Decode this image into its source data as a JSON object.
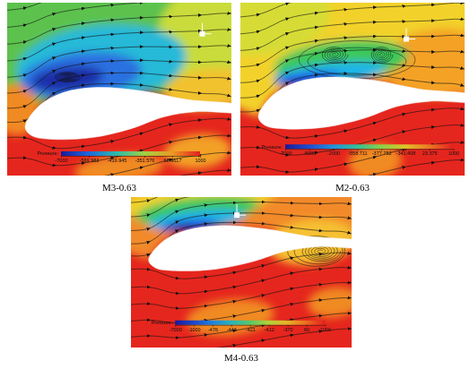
{
  "chart_data": [
    {
      "type": "contour",
      "title": "M3-0.63",
      "colorbar": {
        "label": "Pressure:",
        "range": [
          -7000,
          1000
        ],
        "ticks": [
          -7000,
          -569.983,
          -419.945,
          -351.576,
          68.9617,
          1000
        ]
      }
    },
    {
      "type": "contour",
      "title": "M2-0.63",
      "colorbar": {
        "label": "Pressure:",
        "range": [
          -7000,
          1000
        ],
        "ticks": [
          -7000,
          -5000,
          -2000,
          -558.711,
          -377.752,
          -341.408,
          23.375,
          1000
        ]
      }
    },
    {
      "type": "contour",
      "title": "M4-0.63",
      "colorbar": {
        "label": "Pressure:",
        "range": [
          -7000,
          1000
        ],
        "ticks": [
          -7000,
          -1000,
          -476,
          -446,
          -421,
          -412,
          -370,
          60,
          1000
        ]
      }
    }
  ]
}
